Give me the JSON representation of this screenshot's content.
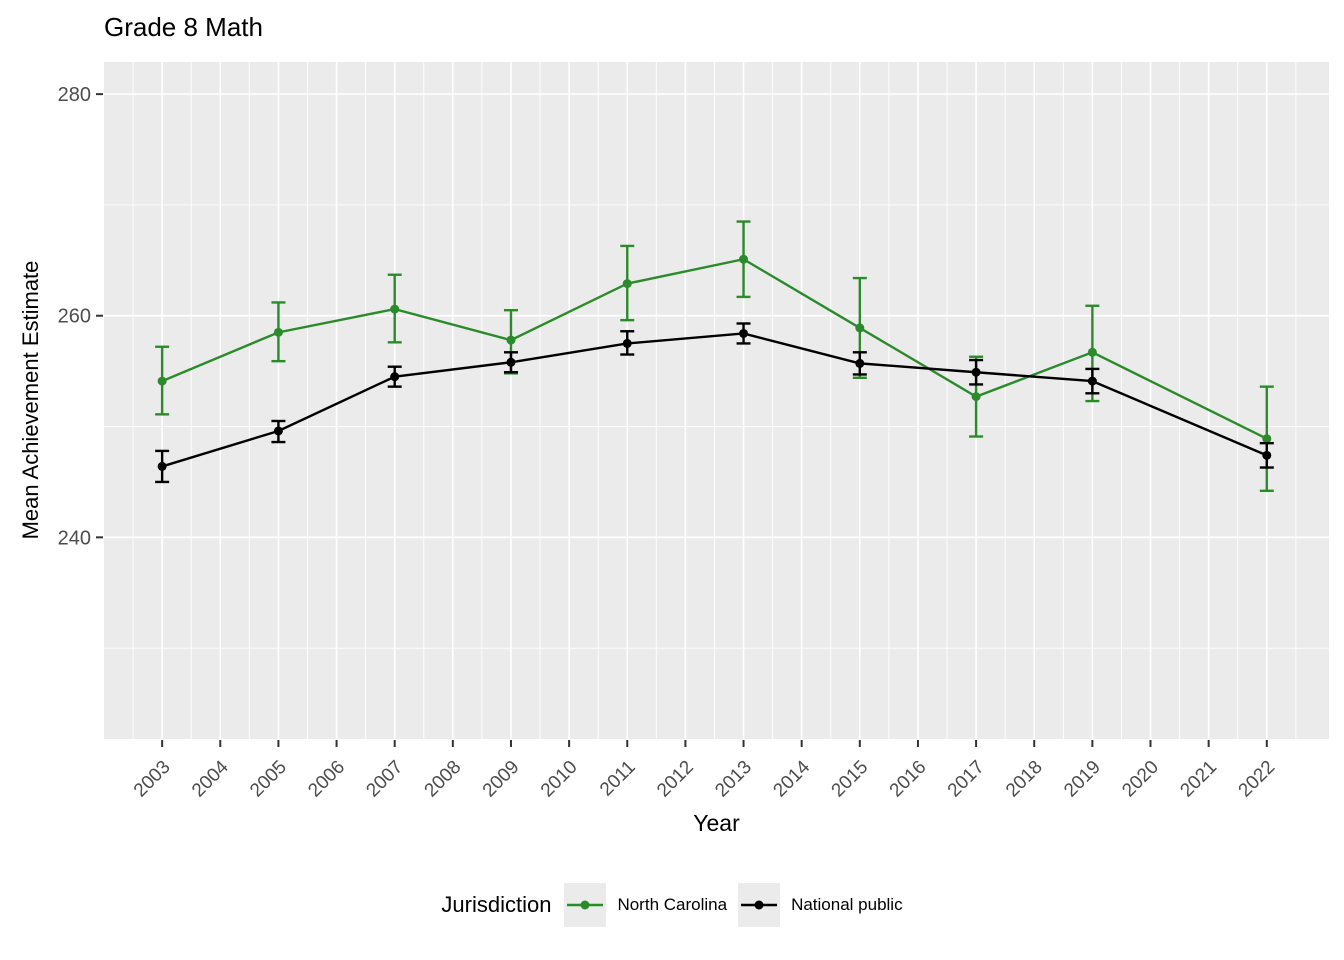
{
  "page_title": "Grade 8 Math",
  "chart_data": {
    "type": "line",
    "title": "Grade 8 Math",
    "xlabel": "Year",
    "ylabel": "Mean Achievement Estimate",
    "grid": true,
    "error_bars": true,
    "marker": "circle",
    "panel_bg": "#ebebeb",
    "grid_color": "#ffffff",
    "tick_color": "#333333",
    "axis_text_color": "#4d4d4d",
    "xlim": [
      2002.0,
      2023.07
    ],
    "ylim": [
      221.8,
      282.9
    ],
    "x_ticks": [
      2003,
      2004,
      2005,
      2006,
      2007,
      2008,
      2009,
      2010,
      2011,
      2012,
      2013,
      2014,
      2015,
      2016,
      2017,
      2018,
      2019,
      2020,
      2021,
      2022
    ],
    "x_minor_ticks": [
      2002.5,
      2003.5,
      2004.5,
      2005.5,
      2006.5,
      2007.5,
      2008.5,
      2009.5,
      2010.5,
      2011.5,
      2012.5,
      2013.5,
      2014.5,
      2015.5,
      2016.5,
      2017.5,
      2018.5,
      2019.5,
      2020.5,
      2021.5,
      2022.5
    ],
    "y_ticks": [
      240,
      260,
      280
    ],
    "y_minor_ticks": [
      230,
      250,
      270
    ],
    "legend": {
      "title": "Jurisdiction",
      "position": "bottom",
      "entries": [
        "North Carolina",
        "National public"
      ]
    },
    "series": [
      {
        "name": "North Carolina",
        "color": "#2b8b2b",
        "x": [
          2003,
          2005,
          2007,
          2009,
          2011,
          2013,
          2015,
          2017,
          2019,
          2022
        ],
        "y": [
          254.1,
          258.5,
          260.6,
          257.8,
          262.9,
          265.1,
          258.9,
          252.7,
          256.7,
          248.9
        ],
        "ci_low": [
          251.1,
          255.9,
          257.6,
          254.8,
          259.6,
          261.7,
          254.4,
          249.1,
          252.3,
          244.2
        ],
        "ci_high": [
          257.2,
          261.2,
          263.7,
          260.5,
          266.3,
          268.5,
          263.4,
          256.3,
          260.9,
          253.6
        ]
      },
      {
        "name": "National public",
        "color": "#000000",
        "x": [
          2003,
          2005,
          2007,
          2009,
          2011,
          2013,
          2015,
          2017,
          2019,
          2022
        ],
        "y": [
          246.4,
          249.6,
          254.5,
          255.8,
          257.5,
          258.4,
          255.7,
          254.9,
          254.1,
          247.4
        ],
        "ci_low": [
          245.0,
          248.6,
          253.6,
          254.9,
          256.5,
          257.5,
          254.7,
          253.8,
          253.0,
          246.3
        ],
        "ci_high": [
          247.8,
          250.5,
          255.4,
          256.7,
          258.6,
          259.3,
          256.7,
          256.0,
          255.2,
          248.5
        ]
      }
    ]
  }
}
